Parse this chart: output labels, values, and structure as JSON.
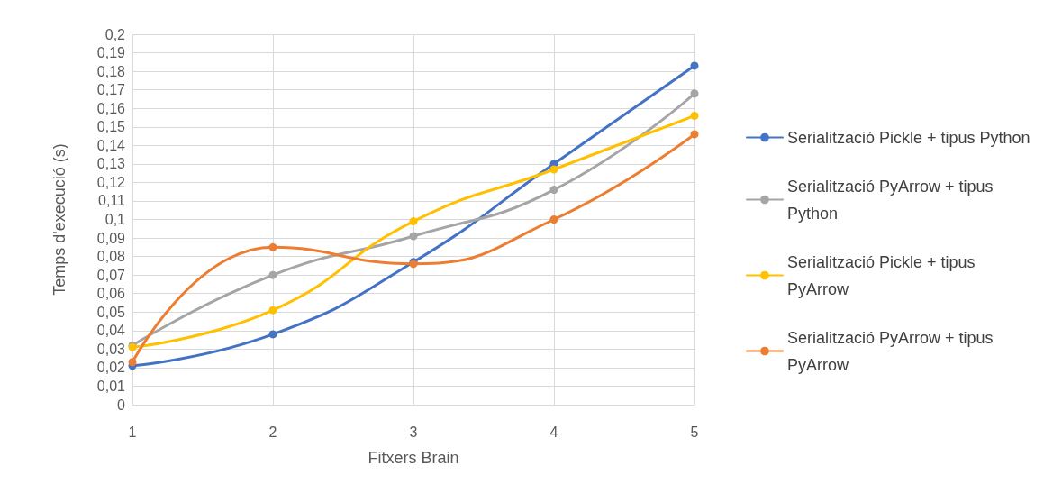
{
  "chart_data": {
    "type": "line",
    "xlabel": "Fitxers Brain",
    "ylabel": "Temps d'execució (s)",
    "categories": [
      "1",
      "2",
      "3",
      "4",
      "5"
    ],
    "series": [
      {
        "name": "Serialització Pickle + tipus Python",
        "color": "#4472c4",
        "values": [
          0.021,
          0.038,
          0.077,
          0.13,
          0.183
        ]
      },
      {
        "name": "Serialització PyArrow + tipus Python",
        "color": "#a5a5a5",
        "values": [
          0.032,
          0.07,
          0.091,
          0.116,
          0.168
        ]
      },
      {
        "name": "Serialització Pickle + tipus PyArrow",
        "color": "#ffc000",
        "values": [
          0.031,
          0.051,
          0.099,
          0.127,
          0.156
        ]
      },
      {
        "name": "Serialització PyArrow + tipus PyArrow",
        "color": "#ed7d31",
        "values": [
          0.023,
          0.085,
          0.076,
          0.1,
          0.146
        ]
      }
    ],
    "ylim": [
      0,
      0.2
    ],
    "yticks": [
      0,
      {
        "value": 0.01,
        "label": "0,01"
      },
      {
        "value": 0.02,
        "label": "0,02"
      },
      {
        "value": 0.03,
        "label": "0,03"
      },
      {
        "value": 0.04,
        "label": "0,04"
      },
      {
        "value": 0.05,
        "label": "0,05"
      },
      {
        "value": 0.06,
        "label": "0,06"
      },
      {
        "value": 0.07,
        "label": "0,07"
      },
      {
        "value": 0.08,
        "label": "0,08"
      },
      {
        "value": 0.09,
        "label": "0,09"
      },
      {
        "value": 0.1,
        "label": "0,1"
      },
      {
        "value": 0.11,
        "label": "0,11"
      },
      {
        "value": 0.12,
        "label": "0,12"
      },
      {
        "value": 0.13,
        "label": "0,13"
      },
      {
        "value": 0.14,
        "label": "0,14"
      },
      {
        "value": 0.15,
        "label": "0,15"
      },
      {
        "value": 0.16,
        "label": "0,16"
      },
      {
        "value": 0.17,
        "label": "0,17"
      },
      {
        "value": 0.18,
        "label": "0,18"
      },
      {
        "value": 0.19,
        "label": "0,19"
      },
      {
        "value": 0.2,
        "label": "0,2"
      }
    ],
    "grid": true,
    "legend": "right",
    "marker": "circle",
    "line_style": "solid"
  }
}
